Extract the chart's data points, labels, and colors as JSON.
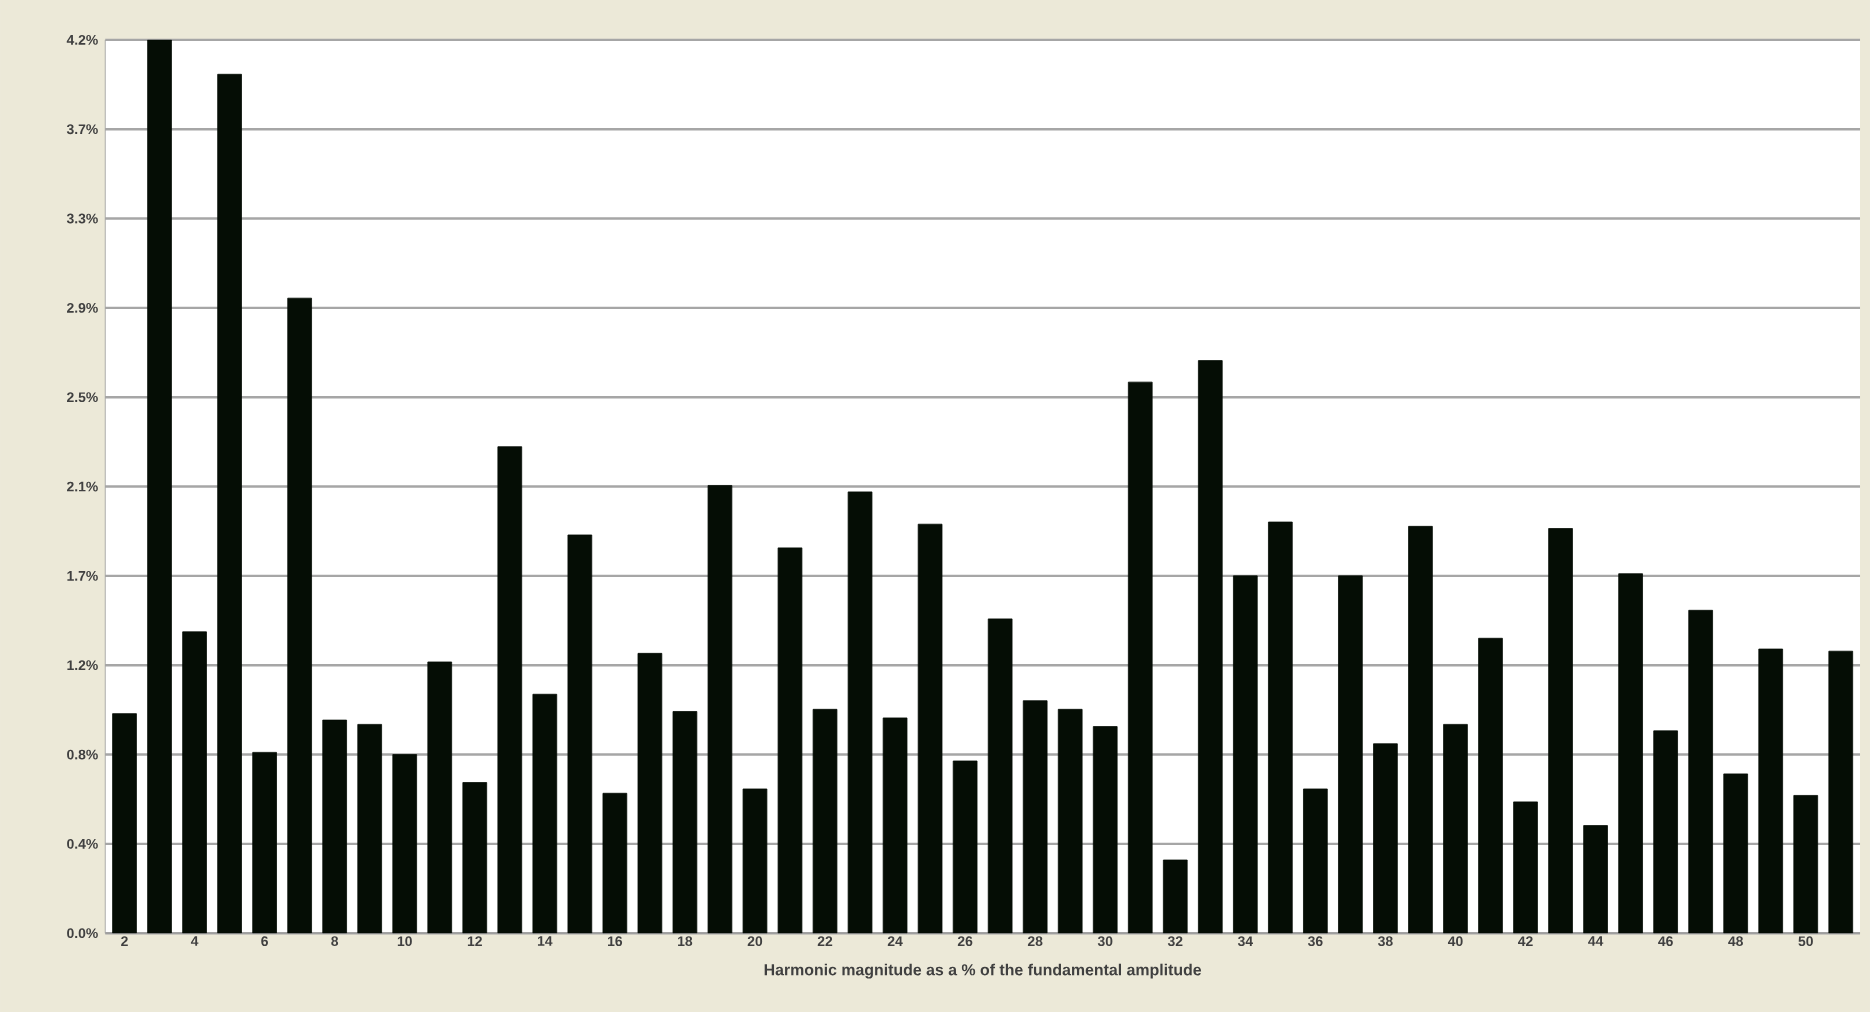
{
  "chart_data": {
    "type": "bar",
    "xlabel": "Harmonic magnitude as a % of the fundamental amplitude",
    "categories": [
      "2",
      null,
      "4",
      null,
      "6",
      null,
      "8",
      null,
      "10",
      null,
      "12",
      null,
      "14",
      null,
      "16",
      null,
      "18",
      null,
      "20",
      null,
      "22",
      null,
      "24",
      null,
      "26",
      null,
      "28",
      null,
      "30",
      null,
      "32",
      null,
      "34",
      null,
      "36",
      null,
      "38",
      null,
      "40",
      null,
      "42",
      null,
      "44",
      null,
      "46",
      null,
      "48",
      null,
      "50",
      null
    ],
    "values": [
      1.02,
      4.15,
      1.4,
      3.99,
      0.84,
      2.95,
      0.99,
      0.97,
      0.83,
      1.26,
      0.7,
      2.26,
      1.11,
      1.85,
      0.65,
      1.3,
      1.03,
      2.08,
      0.67,
      1.79,
      1.04,
      2.05,
      1.0,
      1.9,
      0.8,
      1.46,
      1.08,
      1.04,
      0.96,
      2.56,
      0.34,
      2.66,
      1.66,
      1.91,
      0.67,
      1.66,
      0.88,
      1.89,
      0.97,
      1.37,
      0.61,
      1.88,
      0.5,
      1.67,
      0.94,
      1.5,
      0.74,
      1.32,
      0.64,
      1.31
    ],
    "color": "#050d05",
    "ylim": [
      0,
      4.15
    ],
    "yticks": [
      {
        "value": 0,
        "label": "0.0%"
      },
      {
        "value": 0.415,
        "label": "0.4%"
      },
      {
        "value": 0.83,
        "label": "0.8%"
      },
      {
        "value": 1.245,
        "label": "1.2%"
      },
      {
        "value": 1.66,
        "label": "1.7%"
      },
      {
        "value": 2.075,
        "label": "2.1%"
      },
      {
        "value": 2.49,
        "label": "2.5%"
      },
      {
        "value": 2.905,
        "label": "2.9%"
      },
      {
        "value": 3.32,
        "label": "3.3%"
      },
      {
        "value": 3.735,
        "label": "3.7%"
      },
      {
        "value": 4.15,
        "label": "4.2%"
      }
    ],
    "grid": "y"
  }
}
